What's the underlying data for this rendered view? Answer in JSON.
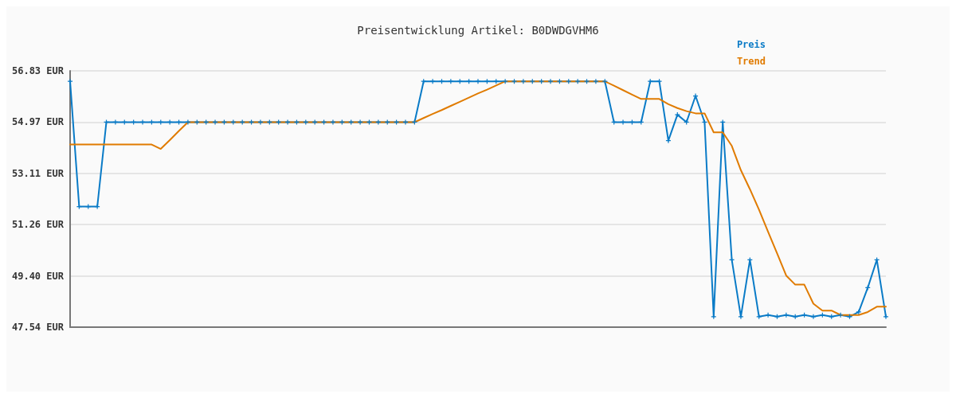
{
  "chart_data": {
    "type": "line",
    "title": "Preisentwicklung Artikel: B0DWDGVHM6",
    "categories": [
      null,
      null,
      null,
      null,
      null,
      null,
      null,
      null,
      null,
      null,
      null,
      null,
      null,
      null,
      null,
      null,
      null,
      null,
      null,
      null,
      null,
      null,
      null,
      null,
      null,
      null,
      null,
      null,
      null,
      null,
      null,
      null,
      null,
      null,
      null,
      null,
      null,
      null,
      null,
      null,
      null,
      null,
      null,
      null,
      null,
      null,
      null,
      null,
      null,
      null,
      null,
      null,
      null,
      null,
      null,
      null,
      null,
      null,
      null,
      null,
      null,
      null,
      null,
      null,
      null,
      null,
      null,
      null,
      null,
      null,
      null,
      null,
      null,
      null,
      null,
      null,
      null,
      null,
      null,
      null,
      null,
      null,
      null,
      null,
      null,
      null,
      null,
      null,
      null,
      null,
      null
    ],
    "series": [
      {
        "name": "Preis",
        "color": "#0a7bc7",
        "values": [
          56.45,
          51.91,
          51.91,
          51.91,
          54.97,
          54.97,
          54.97,
          54.97,
          54.97,
          54.97,
          54.97,
          54.97,
          54.97,
          54.97,
          54.97,
          54.97,
          54.97,
          54.97,
          54.97,
          54.97,
          54.97,
          54.97,
          54.97,
          54.97,
          54.97,
          54.97,
          54.97,
          54.97,
          54.97,
          54.97,
          54.97,
          54.97,
          54.97,
          54.97,
          54.97,
          54.97,
          54.97,
          54.97,
          54.97,
          56.45,
          56.45,
          56.45,
          56.45,
          56.45,
          56.45,
          56.45,
          56.45,
          56.45,
          56.45,
          56.45,
          56.45,
          56.45,
          56.45,
          56.45,
          56.45,
          56.45,
          56.45,
          56.45,
          56.45,
          56.45,
          54.97,
          54.97,
          54.97,
          54.97,
          56.45,
          56.45,
          54.3,
          55.24,
          54.97,
          55.92,
          54.97,
          47.92,
          54.97,
          49.98,
          47.92,
          49.98,
          47.92,
          47.98,
          47.92,
          47.98,
          47.92,
          47.98,
          47.92,
          47.98,
          47.92,
          47.98,
          47.92,
          48.09,
          48.97,
          49.98,
          47.92
        ]
      },
      {
        "name": "Trend",
        "color": "#e07b00",
        "marker": "none",
        "values": [
          54.16,
          54.16,
          54.16,
          54.16,
          54.16,
          54.16,
          54.16,
          54.16,
          54.16,
          54.16,
          54.0,
          54.32,
          54.65,
          54.97,
          54.97,
          54.97,
          54.97,
          54.97,
          54.97,
          54.97,
          54.97,
          54.97,
          54.97,
          54.97,
          54.97,
          54.97,
          54.97,
          54.97,
          54.97,
          54.97,
          54.97,
          54.97,
          54.97,
          54.97,
          54.97,
          54.97,
          54.97,
          54.97,
          54.97,
          55.12,
          55.27,
          55.41,
          55.56,
          55.71,
          55.86,
          56.01,
          56.15,
          56.3,
          56.45,
          56.45,
          56.45,
          56.45,
          56.45,
          56.45,
          56.45,
          56.45,
          56.45,
          56.45,
          56.45,
          56.45,
          56.29,
          56.13,
          55.97,
          55.81,
          55.81,
          55.81,
          55.62,
          55.48,
          55.37,
          55.29,
          55.29,
          54.6,
          54.6,
          54.11,
          53.23,
          52.54,
          51.8,
          51.0,
          50.21,
          49.41,
          49.08,
          49.08,
          48.39,
          48.14,
          48.14,
          47.98,
          47.98,
          47.98,
          48.09,
          48.28,
          48.28
        ]
      }
    ],
    "ylim": [
      47.54,
      56.83
    ],
    "yticks": [
      {
        "value": 47.54,
        "label": "47.54 EUR"
      },
      {
        "value": 49.4,
        "label": "49.40 EUR"
      },
      {
        "value": 51.26,
        "label": "51.26 EUR"
      },
      {
        "value": 53.11,
        "label": "53.11 EUR"
      },
      {
        "value": 54.97,
        "label": "54.97 EUR"
      },
      {
        "value": 56.83,
        "label": "56.83 EUR"
      }
    ],
    "grid": "y",
    "legend": "top right",
    "marker": "cross",
    "line_style": "solid",
    "tick_labels": "y"
  }
}
